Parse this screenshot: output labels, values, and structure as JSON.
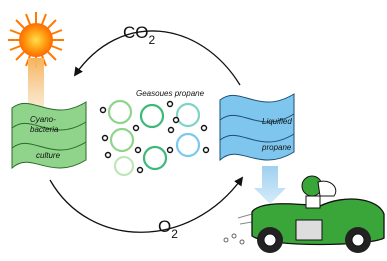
{
  "cycle": {
    "top_arrow": {
      "main": "CO",
      "sub": "2"
    },
    "bottom_arrow": {
      "main": "O",
      "sub": "2"
    }
  },
  "nodes": [
    {
      "lines": [
        "Cyano-",
        "bacteria",
        "culture"
      ]
    },
    {
      "lines": [
        "Geasoues propane"
      ]
    },
    {
      "lines": [
        "Liquified",
        "propane"
      ]
    }
  ]
}
